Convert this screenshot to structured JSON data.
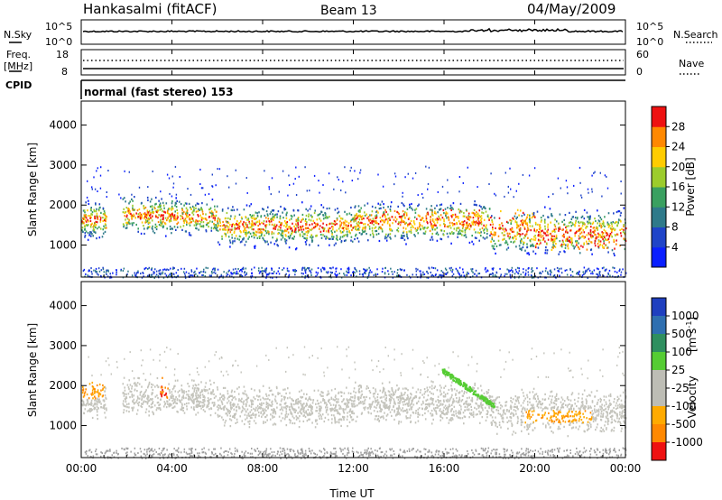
{
  "header": {
    "station": "Hankasalmi (fitACF)",
    "beam": "Beam 13",
    "date": "04/May/2009"
  },
  "top_panels": {
    "nsky": {
      "label": "N.Sky",
      "tick_top": "10^5",
      "tick_bottom": "10^0"
    },
    "nsearch": {
      "label": "N.Search",
      "tick_top": "10^5",
      "tick_bottom": "10^0"
    },
    "freq": {
      "label_line1": "Freq.",
      "label_line2": "[MHz]",
      "tick_top": "18",
      "tick_bottom": "8"
    },
    "nave": {
      "label": "Nave",
      "tick_top": "60",
      "tick_bottom": "0"
    },
    "cpid": {
      "label": "CPID",
      "program": "normal (fast stereo) 153"
    }
  },
  "chart_data": [
    {
      "type": "heatmap",
      "title": "",
      "xlabel": "Time UT",
      "ylabel": "Slant Range [km]",
      "ylim": [
        200,
        4600
      ],
      "yticks": [
        1000,
        2000,
        3000,
        4000
      ],
      "xticks": [
        "00:00",
        "04:00",
        "08:00",
        "12:00",
        "16:00",
        "20:00",
        "00:00"
      ],
      "colorbar": {
        "label": "Power [dB]",
        "ticks": [
          "4",
          "8",
          "12",
          "16",
          "20",
          "24",
          "28"
        ],
        "colors": [
          "#0a1fff",
          "#1f44c8",
          "#2f7a8a",
          "#3aa060",
          "#9ccc2c",
          "#ffcc00",
          "#ff8800",
          "#ee1111"
        ]
      },
      "description": "Backscatter power vs time and slant range"
    },
    {
      "type": "heatmap",
      "title": "",
      "xlabel": "Time UT",
      "ylabel": "Slant Range [km]",
      "ylim": [
        200,
        4600
      ],
      "yticks": [
        1000,
        2000,
        3000,
        4000
      ],
      "xticks": [
        "00:00",
        "04:00",
        "08:00",
        "12:00",
        "16:00",
        "20:00",
        "00:00"
      ],
      "colorbar": {
        "label": "Velocity [m s-1]",
        "ticks": [
          "1000",
          "500",
          "100",
          "25",
          "-25",
          "-100",
          "-500",
          "-1000"
        ],
        "colors": [
          "#1f3fbf",
          "#2f6fb0",
          "#2f8f5f",
          "#55cc33",
          "#bdbdb5",
          "#bdbdb5",
          "#ffaa00",
          "#ff8800",
          "#ee1111"
        ]
      }
    }
  ],
  "axis_titles": {
    "x": "Time UT",
    "y": "Slant Range [km]",
    "power_cb": "Power [dB]",
    "vel_cb_main": "Velocity",
    "vel_cb_unit": "[m s",
    "vel_cb_sup": "-1",
    "vel_cb_close": "]"
  },
  "colors": {
    "ground": "#a0a0a0",
    "axis": "#000000"
  }
}
